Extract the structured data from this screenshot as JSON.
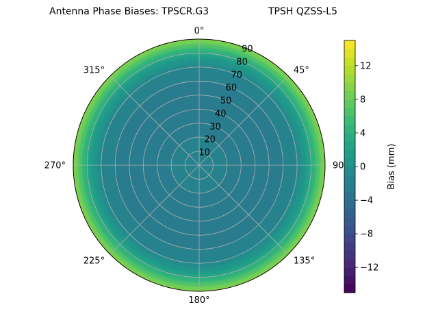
{
  "title_left": "Antenna Phase Biases: TPSCR.G3",
  "title_right": "TPSH QZSS-L5",
  "chart_data": {
    "type": "heatmap",
    "projection": "polar",
    "theta_zero": "N",
    "theta_direction": "clockwise",
    "angle_ticks": [
      {
        "deg": 0,
        "label": "0°"
      },
      {
        "deg": 45,
        "label": "45°"
      },
      {
        "deg": 90,
        "label": "90°"
      },
      {
        "deg": 135,
        "label": "135°"
      },
      {
        "deg": 180,
        "label": "180°"
      },
      {
        "deg": 225,
        "label": "225°"
      },
      {
        "deg": 270,
        "label": "270°"
      },
      {
        "deg": 315,
        "label": "315°"
      }
    ],
    "radial_ticks": [
      10,
      20,
      30,
      40,
      50,
      60,
      70,
      80,
      90
    ],
    "radial_tick_labels": [
      "10",
      "20",
      "30",
      "40",
      "50",
      "60",
      "70",
      "80",
      "90"
    ],
    "rlim": [
      0,
      90
    ],
    "grid": true,
    "colormap": "viridis",
    "clim": [
      -15,
      15
    ],
    "colorbar_ticks": [
      -12,
      -8,
      -4,
      0,
      4,
      8,
      12
    ],
    "colorbar_tick_labels": [
      "−12",
      "−8",
      "−4",
      "0",
      "4",
      "8",
      "12"
    ],
    "colorbar_label": "Bias (mm)",
    "bias_profile": {
      "zenith_angle_deg": [
        0,
        10,
        20,
        30,
        40,
        50,
        60,
        70,
        75,
        80,
        85,
        90
      ],
      "bias_mm": [
        -1,
        -1.5,
        -2,
        -2.5,
        -2.5,
        -2.5,
        -2,
        -1,
        0.5,
        3,
        6.5,
        10
      ]
    }
  }
}
